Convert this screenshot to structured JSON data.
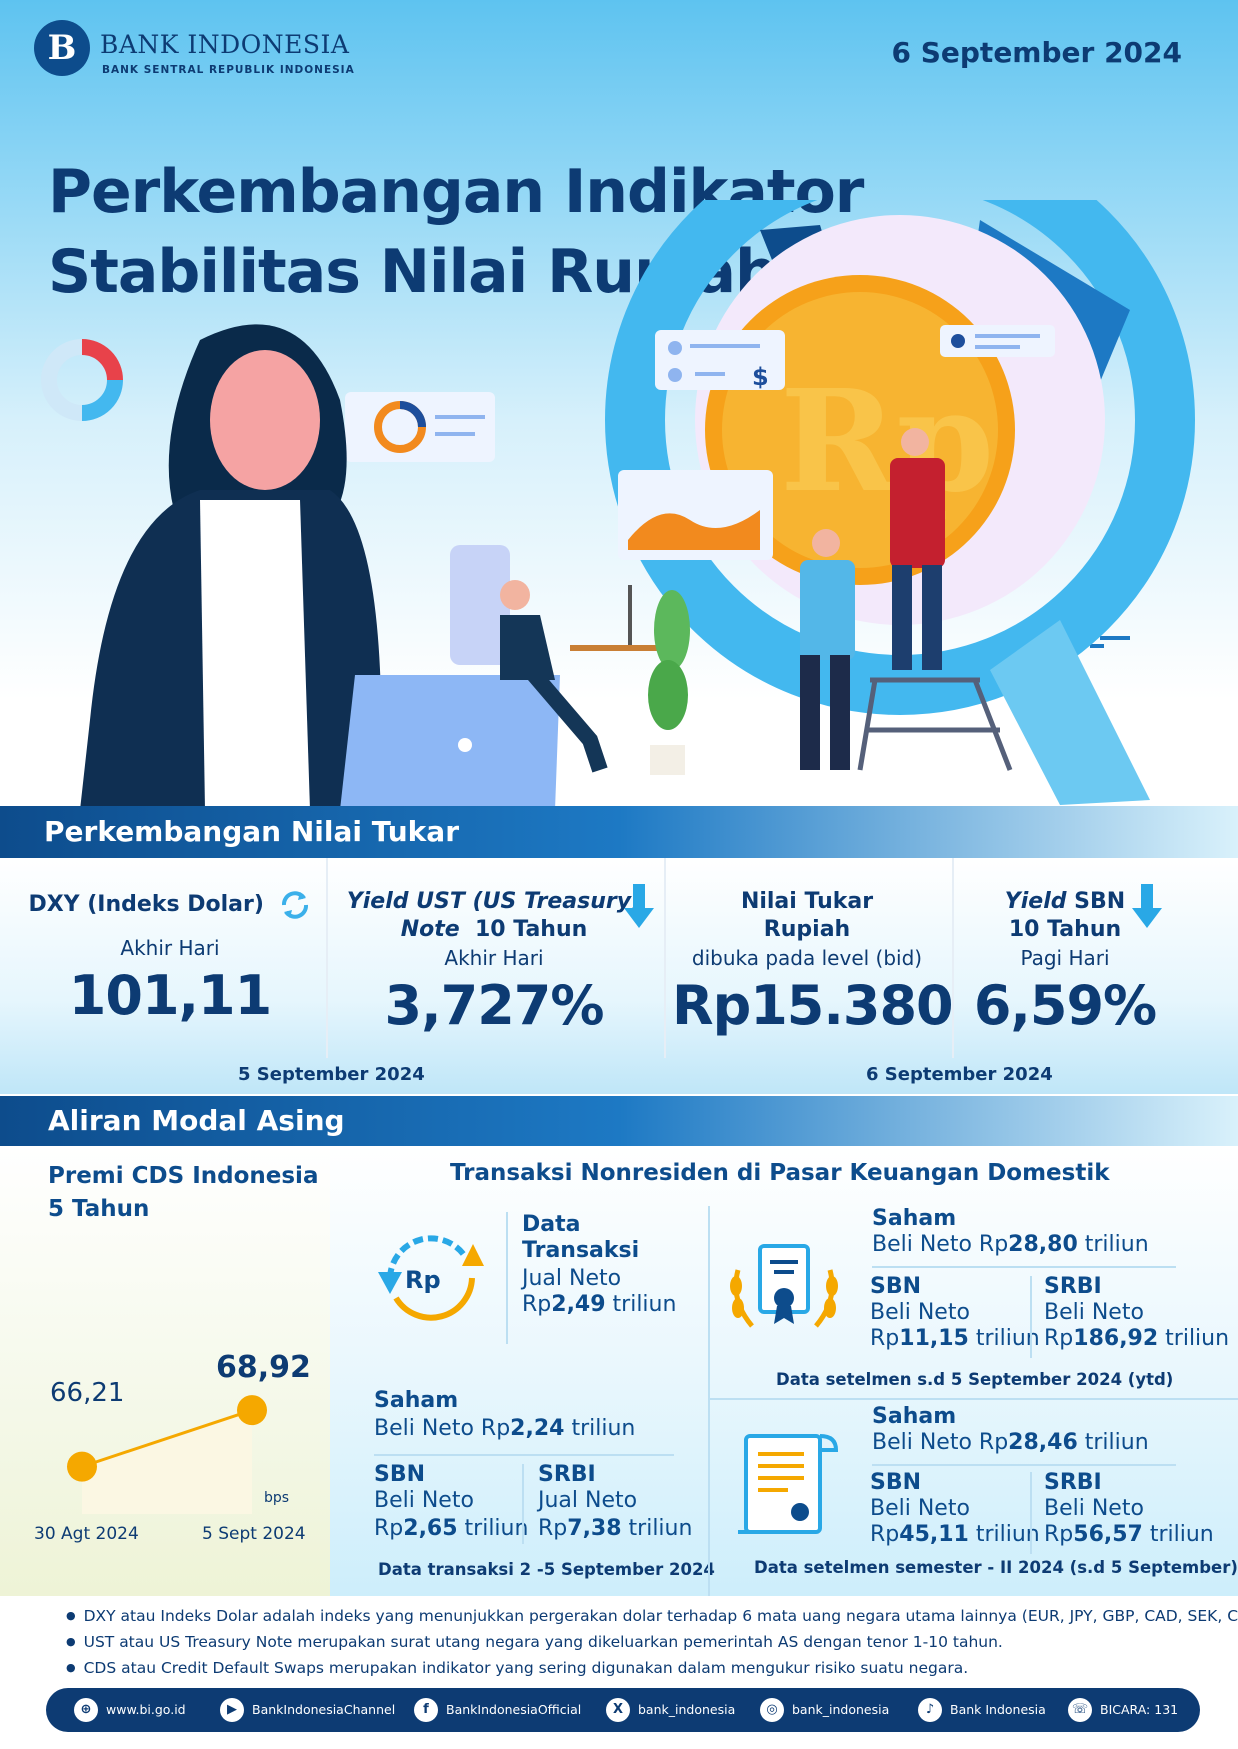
{
  "header": {
    "logo_name": "BANK INDONESIA",
    "logo_sub": "BANK SENTRAL REPUBLIK INDONESIA",
    "logo_mark": "B",
    "date": "6 September 2024",
    "title_line1": "Perkembangan Indikator",
    "title_line2": "Stabilitas Nilai Rupiah"
  },
  "illustration": {
    "coin_text": "Rp",
    "dollar": "$"
  },
  "exchange": {
    "section_title": "Perkembangan Nilai Tukar",
    "dxy": {
      "title": "DXY (Indeks Dolar)",
      "sub": "Akhir Hari",
      "value": "101,11",
      "icon": "refresh-icon"
    },
    "ust": {
      "title_italic": "Yield UST (US Treasury)",
      "title_italic2": "Note",
      "title_rest": "10 Tahun",
      "sub": "Akhir Hari",
      "value": "3,727%",
      "icon": "arrow-down-icon"
    },
    "rupiah": {
      "title1": "Nilai Tukar",
      "title2": "Rupiah",
      "sub": "dibuka pada level (bid)",
      "value": "Rp15.380"
    },
    "sbn": {
      "title_italic": "Yield",
      "title_rest": "SBN",
      "title2": "10 Tahun",
      "sub": "Pagi Hari",
      "value": "6,59%",
      "icon": "arrow-down-icon"
    },
    "date_left": "5 September 2024",
    "date_right": "6 September 2024"
  },
  "flow": {
    "section_title": "Aliran Modal Asing",
    "cds": {
      "title1": "Premi CDS Indonesia",
      "title2": "5 Tahun",
      "unit": "bps",
      "points": [
        {
          "date": "30 Agt 2024",
          "value": "66,21"
        },
        {
          "date": "5 Sept 2024",
          "value": "68,92"
        }
      ]
    },
    "chart_data": {
      "type": "line",
      "x": [
        "30 Agt 2024",
        "5 Sept 2024"
      ],
      "series": [
        {
          "values": [
            66.21,
            68.92
          ]
        }
      ],
      "title": "Premi CDS Indonesia 5 Tahun",
      "ylabel": "bps"
    },
    "transactions": {
      "title": "Transaksi Nonresiden di Pasar Keuangan Domestik",
      "data_label1": "Data",
      "data_label2": "Transaksi",
      "data_jual": "Jual Neto",
      "data_amount_prefix": "Rp",
      "data_amount": "2,49",
      "data_amount_suffix": " triliun",
      "weekly": {
        "saham_label": "Saham",
        "saham_prefix": "Beli Neto Rp",
        "saham_amount": "2,24",
        "saham_suffix": " triliun",
        "sbn_label": "SBN",
        "sbn_kind": "Beli Neto",
        "sbn_prefix": "Rp",
        "sbn_amount": "2,65",
        "sbn_suffix": " triliun",
        "srbi_label": "SRBI",
        "srbi_kind": "Jual Neto",
        "srbi_prefix": "Rp",
        "srbi_amount": "7,38",
        "srbi_suffix": " triliun",
        "note": "Data transaksi 2 -5 September 2024"
      },
      "ytd": {
        "saham_label": "Saham",
        "saham_prefix": "Beli Neto Rp",
        "saham_amount": "28,80",
        "saham_suffix": " triliun",
        "sbn_label": "SBN",
        "sbn_kind": "Beli Neto",
        "sbn_prefix": "Rp",
        "sbn_amount": "11,15",
        "sbn_suffix": " triliun",
        "srbi_label": "SRBI",
        "srbi_kind": "Beli Neto",
        "srbi_prefix": "Rp",
        "srbi_amount": "186,92",
        "srbi_suffix": " triliun",
        "note": "Data setelmen s.d 5 September 2024 (ytd)"
      },
      "semester": {
        "saham_label": "Saham",
        "saham_prefix": "Beli Neto Rp",
        "saham_amount": "28,46",
        "saham_suffix": " triliun",
        "sbn_label": "SBN",
        "sbn_kind": "Beli Neto",
        "sbn_prefix": "Rp",
        "sbn_amount": "45,11",
        "sbn_suffix": " triliun",
        "srbi_label": "SRBI",
        "srbi_kind": "Beli Neto",
        "srbi_prefix": "Rp",
        "srbi_amount": "56,57",
        "srbi_suffix": " triliun",
        "note": "Data setelmen semester - II 2024 (s.d 5 September)"
      }
    }
  },
  "notes": [
    "DXY atau Indeks Dolar adalah indeks yang menunjukkan pergerakan dolar terhadap 6 mata uang negara utama lainnya (EUR, JPY, GBP, CAD, SEK, CHF).",
    "UST atau US Treasury Note merupakan surat utang negara yang dikeluarkan  pemerintah AS dengan tenor 1-10 tahun.",
    "CDS atau Credit Default Swaps merupakan indikator  yang sering digunakan dalam mengukur risiko suatu negara."
  ],
  "footer": [
    {
      "icon": "globe-icon",
      "glyph": "⊕",
      "label": "www.bi.go.id"
    },
    {
      "icon": "youtube-icon",
      "glyph": "▶",
      "label": "BankIndonesiaChannel"
    },
    {
      "icon": "facebook-icon",
      "glyph": "f",
      "label": "BankIndonesiaOfficial"
    },
    {
      "icon": "x-icon",
      "glyph": "X",
      "label": "bank_indonesia"
    },
    {
      "icon": "instagram-icon",
      "glyph": "◎",
      "label": "bank_indonesia"
    },
    {
      "icon": "tiktok-icon",
      "glyph": "♪",
      "label": "Bank Indonesia"
    },
    {
      "icon": "bicara-icon",
      "glyph": "☏",
      "label": "BICARA: 131"
    }
  ],
  "colors": {
    "primary": "#0d3b73",
    "accent": "#1d79c4",
    "cds_dot": "#f5a800",
    "coin": "#f6a11a"
  }
}
